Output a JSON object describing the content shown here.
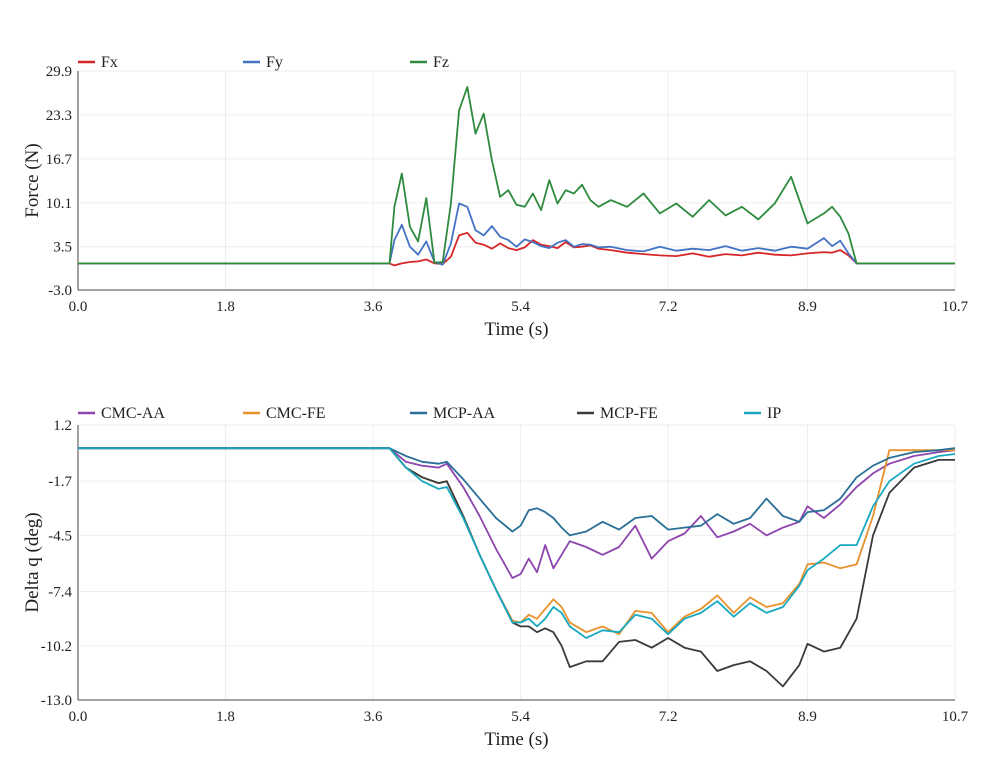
{
  "chart_data": [
    {
      "type": "line",
      "title": "",
      "xlabel": "Time (s)",
      "ylabel": "Force (N)",
      "xlim": [
        0,
        10.7
      ],
      "ylim": [
        -3.0,
        29.9
      ],
      "xticks": [
        "0.0",
        "1.8",
        "3.6",
        "5.4",
        "7.2",
        "8.9",
        "10.7"
      ],
      "yticks": [
        "-3.0",
        "3.5",
        "10.1",
        "16.7",
        "23.3",
        "29.9"
      ],
      "grid": true,
      "legend": "top",
      "series": [
        {
          "name": "Fx",
          "color": "#d62728",
          "x": [
            0,
            3.8,
            3.86,
            3.95,
            4.05,
            4.15,
            4.25,
            4.35,
            4.45,
            4.55,
            4.65,
            4.75,
            4.85,
            4.95,
            5.05,
            5.15,
            5.25,
            5.35,
            5.45,
            5.55,
            5.65,
            5.75,
            5.85,
            5.95,
            6.05,
            6.15,
            6.25,
            6.35,
            6.5,
            6.7,
            6.9,
            7.1,
            7.3,
            7.5,
            7.7,
            7.9,
            8.1,
            8.3,
            8.5,
            8.7,
            8.9,
            9.1,
            9.2,
            9.3,
            9.4,
            9.5,
            10.7
          ],
          "values": [
            1.0,
            1.0,
            0.7,
            1.0,
            1.2,
            1.3,
            1.6,
            1.0,
            0.9,
            2.0,
            5.2,
            5.6,
            4.1,
            3.8,
            3.2,
            4.0,
            3.3,
            3.0,
            3.4,
            4.5,
            3.8,
            3.6,
            3.3,
            4.2,
            3.4,
            3.5,
            3.7,
            3.2,
            3.0,
            2.6,
            2.4,
            2.2,
            2.1,
            2.5,
            2.0,
            2.4,
            2.2,
            2.6,
            2.3,
            2.2,
            2.5,
            2.7,
            2.6,
            3.0,
            2.2,
            1.0,
            1.0
          ]
        },
        {
          "name": "Fy",
          "color": "#4472c4",
          "x": [
            0,
            3.8,
            3.86,
            3.95,
            4.05,
            4.15,
            4.25,
            4.35,
            4.45,
            4.55,
            4.65,
            4.75,
            4.85,
            4.95,
            5.05,
            5.15,
            5.25,
            5.35,
            5.45,
            5.55,
            5.65,
            5.75,
            5.85,
            5.95,
            6.05,
            6.15,
            6.25,
            6.35,
            6.5,
            6.7,
            6.9,
            7.1,
            7.3,
            7.5,
            7.7,
            7.9,
            8.1,
            8.3,
            8.5,
            8.7,
            8.9,
            9.1,
            9.2,
            9.3,
            9.4,
            9.5,
            10.7
          ],
          "values": [
            1.0,
            1.0,
            4.5,
            6.8,
            3.5,
            2.3,
            4.3,
            1.2,
            0.8,
            4.0,
            10.0,
            9.5,
            6.0,
            5.2,
            6.6,
            5.0,
            4.5,
            3.5,
            4.6,
            4.2,
            3.6,
            3.3,
            4.1,
            4.5,
            3.5,
            3.9,
            3.8,
            3.4,
            3.5,
            3.0,
            2.8,
            3.5,
            2.9,
            3.2,
            3.0,
            3.6,
            2.9,
            3.3,
            2.9,
            3.5,
            3.2,
            4.8,
            3.6,
            4.4,
            2.5,
            1.0,
            1.0
          ]
        },
        {
          "name": "Fz",
          "color": "#2e8b3e",
          "x": [
            0,
            3.8,
            3.86,
            3.95,
            4.05,
            4.15,
            4.25,
            4.35,
            4.45,
            4.55,
            4.65,
            4.75,
            4.85,
            4.95,
            5.05,
            5.15,
            5.25,
            5.35,
            5.45,
            5.55,
            5.65,
            5.75,
            5.85,
            5.95,
            6.05,
            6.15,
            6.25,
            6.35,
            6.5,
            6.7,
            6.9,
            7.1,
            7.3,
            7.5,
            7.7,
            7.9,
            8.1,
            8.3,
            8.5,
            8.7,
            8.9,
            9.1,
            9.2,
            9.3,
            9.4,
            9.5,
            10.7
          ],
          "values": [
            1.0,
            1.0,
            9.5,
            14.5,
            6.5,
            4.3,
            10.8,
            1.1,
            1.2,
            10.0,
            24.0,
            27.5,
            20.5,
            23.5,
            16.5,
            11.0,
            12.0,
            9.8,
            9.5,
            11.5,
            9.0,
            13.5,
            10.0,
            12.0,
            11.5,
            12.8,
            10.5,
            9.5,
            10.5,
            9.5,
            11.5,
            8.5,
            10.0,
            8.0,
            10.5,
            8.2,
            9.5,
            7.6,
            10.0,
            14.0,
            7.0,
            8.5,
            9.5,
            8.0,
            5.5,
            1.0,
            1.0
          ]
        }
      ]
    },
    {
      "type": "line",
      "title": "",
      "xlabel": "Time (s)",
      "ylabel": "Delta q (deg)",
      "xlim": [
        0,
        10.7
      ],
      "ylim": [
        -13.0,
        1.2
      ],
      "xticks": [
        "0.0",
        "1.8",
        "3.6",
        "5.4",
        "7.2",
        "8.9",
        "10.7"
      ],
      "yticks": [
        "-13.0",
        "-10.2",
        "-7.4",
        "-4.5",
        "-1.7",
        "1.2"
      ],
      "grid": true,
      "legend": "top",
      "series": [
        {
          "name": "CMC-AA",
          "color": "#8e44ad",
          "x": [
            0,
            3.8,
            4.0,
            4.2,
            4.4,
            4.5,
            4.7,
            4.9,
            5.1,
            5.3,
            5.4,
            5.5,
            5.6,
            5.7,
            5.8,
            5.9,
            6.0,
            6.2,
            6.4,
            6.6,
            6.8,
            7.0,
            7.2,
            7.4,
            7.6,
            7.8,
            8.0,
            8.2,
            8.4,
            8.6,
            8.8,
            8.9,
            9.1,
            9.3,
            9.5,
            9.7,
            9.9,
            10.2,
            10.5,
            10.7
          ],
          "values": [
            0.0,
            0.0,
            -0.7,
            -0.9,
            -1.0,
            -0.8,
            -2.0,
            -3.5,
            -5.2,
            -6.7,
            -6.5,
            -5.7,
            -6.4,
            -5.0,
            -6.2,
            -5.5,
            -4.8,
            -5.1,
            -5.5,
            -5.1,
            -4.0,
            -5.7,
            -4.8,
            -4.4,
            -3.5,
            -4.6,
            -4.3,
            -3.9,
            -4.5,
            -4.1,
            -3.8,
            -3.0,
            -3.6,
            -2.9,
            -2.0,
            -1.3,
            -0.8,
            -0.4,
            -0.2,
            -0.1
          ]
        },
        {
          "name": "CMC-FE",
          "color": "#e8912d",
          "x": [
            0,
            3.8,
            4.0,
            4.2,
            4.4,
            4.5,
            4.7,
            4.9,
            5.1,
            5.3,
            5.4,
            5.5,
            5.6,
            5.7,
            5.8,
            5.9,
            6.0,
            6.2,
            6.4,
            6.6,
            6.8,
            7.0,
            7.2,
            7.4,
            7.6,
            7.8,
            8.0,
            8.2,
            8.4,
            8.6,
            8.8,
            8.9,
            9.1,
            9.3,
            9.5,
            9.7,
            9.9,
            10.2,
            10.5,
            10.7
          ],
          "values": [
            0.0,
            0.0,
            -1.0,
            -1.5,
            -1.8,
            -1.7,
            -3.5,
            -5.5,
            -7.3,
            -8.9,
            -9.0,
            -8.6,
            -8.8,
            -8.3,
            -7.8,
            -8.2,
            -9.0,
            -9.5,
            -9.2,
            -9.6,
            -8.4,
            -8.5,
            -9.5,
            -8.7,
            -8.3,
            -7.6,
            -8.5,
            -7.7,
            -8.2,
            -8.0,
            -7.0,
            -6.0,
            -5.9,
            -6.2,
            -6.0,
            -3.5,
            -0.1,
            -0.1,
            -0.1,
            -0.1
          ]
        },
        {
          "name": "MCP-AA",
          "color": "#2a6f97",
          "x": [
            0,
            3.8,
            4.0,
            4.2,
            4.4,
            4.5,
            4.7,
            4.9,
            5.1,
            5.3,
            5.4,
            5.5,
            5.6,
            5.7,
            5.8,
            5.9,
            6.0,
            6.2,
            6.4,
            6.6,
            6.8,
            7.0,
            7.2,
            7.4,
            7.6,
            7.8,
            8.0,
            8.2,
            8.4,
            8.6,
            8.8,
            8.9,
            9.1,
            9.3,
            9.5,
            9.7,
            9.9,
            10.2,
            10.5,
            10.7
          ],
          "values": [
            0.0,
            0.0,
            -0.4,
            -0.7,
            -0.8,
            -0.7,
            -1.6,
            -2.6,
            -3.6,
            -4.3,
            -4.0,
            -3.2,
            -3.1,
            -3.3,
            -3.6,
            -4.1,
            -4.5,
            -4.3,
            -3.8,
            -4.2,
            -3.6,
            -3.5,
            -4.2,
            -4.1,
            -4.0,
            -3.4,
            -3.9,
            -3.6,
            -2.6,
            -3.5,
            -3.8,
            -3.3,
            -3.2,
            -2.6,
            -1.5,
            -0.9,
            -0.5,
            -0.2,
            -0.1,
            0.0
          ]
        },
        {
          "name": "MCP-FE",
          "color": "#3a3a3a",
          "x": [
            0,
            3.8,
            4.0,
            4.2,
            4.4,
            4.5,
            4.7,
            4.9,
            5.1,
            5.3,
            5.4,
            5.5,
            5.6,
            5.7,
            5.8,
            5.9,
            6.0,
            6.2,
            6.4,
            6.6,
            6.8,
            7.0,
            7.2,
            7.4,
            7.6,
            7.8,
            8.0,
            8.2,
            8.4,
            8.6,
            8.8,
            8.9,
            9.1,
            9.3,
            9.5,
            9.7,
            9.9,
            10.2,
            10.5,
            10.7
          ],
          "values": [
            0.0,
            0.0,
            -1.0,
            -1.5,
            -1.8,
            -1.7,
            -3.5,
            -5.5,
            -7.3,
            -9.0,
            -9.2,
            -9.2,
            -9.5,
            -9.3,
            -9.5,
            -10.2,
            -11.3,
            -11.0,
            -11.0,
            -10.0,
            -9.9,
            -10.3,
            -9.8,
            -10.3,
            -10.5,
            -11.5,
            -11.2,
            -11.0,
            -11.5,
            -12.3,
            -11.2,
            -10.1,
            -10.5,
            -10.3,
            -8.8,
            -4.5,
            -2.3,
            -1.0,
            -0.6,
            -0.6
          ]
        },
        {
          "name": "IP",
          "color": "#17a9c0",
          "x": [
            0,
            3.8,
            4.0,
            4.2,
            4.4,
            4.5,
            4.7,
            4.9,
            5.1,
            5.3,
            5.4,
            5.5,
            5.6,
            5.7,
            5.8,
            5.9,
            6.0,
            6.2,
            6.4,
            6.6,
            6.8,
            7.0,
            7.2,
            7.4,
            7.6,
            7.8,
            8.0,
            8.2,
            8.4,
            8.6,
            8.8,
            8.9,
            9.1,
            9.3,
            9.5,
            9.7,
            9.9,
            10.2,
            10.5,
            10.7
          ],
          "values": [
            0.0,
            0.0,
            -1.0,
            -1.7,
            -2.1,
            -2.0,
            -3.6,
            -5.5,
            -7.3,
            -9.0,
            -9.0,
            -8.8,
            -9.2,
            -8.8,
            -8.2,
            -8.5,
            -9.2,
            -9.8,
            -9.4,
            -9.5,
            -8.6,
            -8.8,
            -9.6,
            -8.8,
            -8.5,
            -7.9,
            -8.7,
            -8.0,
            -8.5,
            -8.2,
            -7.1,
            -6.3,
            -5.7,
            -5.0,
            -5.0,
            -3.0,
            -1.7,
            -0.8,
            -0.4,
            -0.3
          ]
        }
      ]
    }
  ]
}
